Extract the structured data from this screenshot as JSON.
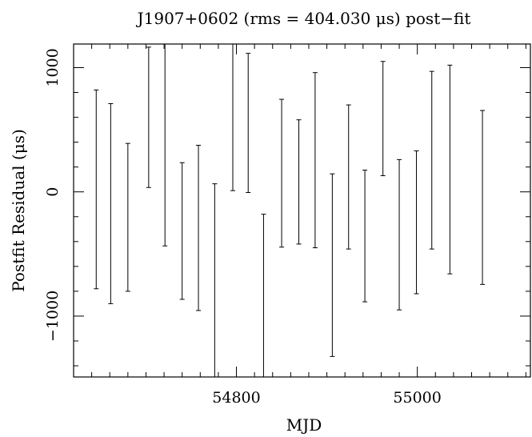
{
  "chart_data": {
    "type": "scatter",
    "title": "J1907+0602 (rms = 404.030 μs) post−fit",
    "xlabel": "MJD",
    "ylabel": "Postfit Residual (μs)",
    "xlim": [
      54620,
      55125
    ],
    "ylim": [
      -1490,
      1190
    ],
    "x_major_ticks": [
      54800,
      55000
    ],
    "x_tick_labels": [
      "54800",
      "55000"
    ],
    "y_major_ticks": [
      -1000,
      0,
      1000
    ],
    "y_tick_labels": [
      "−1000",
      "0",
      "1000"
    ],
    "x_minor_step": 20,
    "y_minor_step": 200,
    "grid": false,
    "points": [
      {
        "x": 54645,
        "y": 20,
        "err": 800
      },
      {
        "x": 54661,
        "y": -95,
        "err": 805
      },
      {
        "x": 54680,
        "y": -205,
        "err": 595
      },
      {
        "x": 54703,
        "y": 600,
        "err": 565
      },
      {
        "x": 54721,
        "y": 385,
        "err": 820
      },
      {
        "x": 54740,
        "y": -315,
        "err": 550
      },
      {
        "x": 54758,
        "y": -290,
        "err": 665
      },
      {
        "x": 54776,
        "y": -725,
        "err": 790
      },
      {
        "x": 54796,
        "y": 600,
        "err": 590
      },
      {
        "x": 54813,
        "y": 555,
        "err": 560
      },
      {
        "x": 54830,
        "y": -880,
        "err": 700
      },
      {
        "x": 54850,
        "y": 150,
        "err": 595
      },
      {
        "x": 54869,
        "y": 80,
        "err": 500
      },
      {
        "x": 54887,
        "y": 255,
        "err": 705
      },
      {
        "x": 54906,
        "y": -590,
        "err": 735
      },
      {
        "x": 54924,
        "y": 120,
        "err": 580
      },
      {
        "x": 54942,
        "y": -355,
        "err": 530
      },
      {
        "x": 54962,
        "y": 590,
        "err": 460
      },
      {
        "x": 54980,
        "y": -345,
        "err": 605
      },
      {
        "x": 54999,
        "y": -245,
        "err": 575
      },
      {
        "x": 55016,
        "y": 255,
        "err": 715
      },
      {
        "x": 55036,
        "y": 180,
        "err": 840
      },
      {
        "x": 55072,
        "y": -45,
        "err": 700
      }
    ]
  }
}
